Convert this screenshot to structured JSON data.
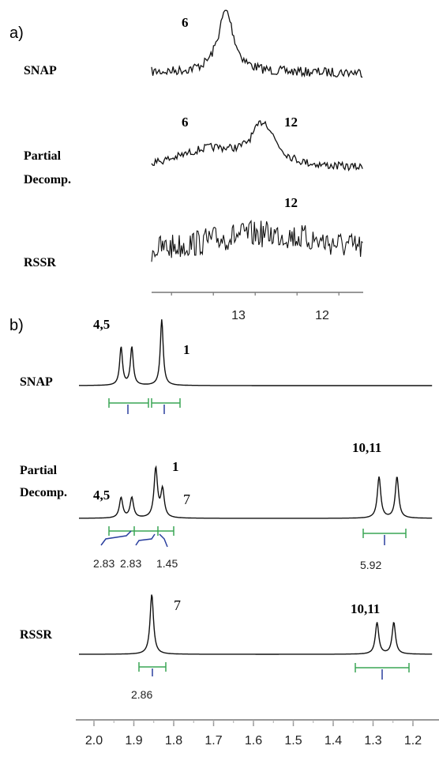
{
  "chart_data": [
    {
      "type": "line",
      "panel": "a)",
      "x_ticks": [
        13,
        12
      ],
      "series": [
        {
          "name": "SNAP",
          "peak_labels": [
            "6"
          ],
          "peaks_ppm": [
            13.15
          ]
        },
        {
          "name": "Partial Decomp.",
          "peak_labels": [
            "6",
            "12"
          ],
          "peaks_ppm": [
            13.2,
            12.7
          ]
        },
        {
          "name": "RSSR",
          "peak_labels": [
            "12"
          ],
          "peaks_ppm": [
            12.7
          ]
        }
      ]
    },
    {
      "type": "line",
      "panel": "b)",
      "x_ticks": [
        2.0,
        1.9,
        1.8,
        1.7,
        1.6,
        1.5,
        1.4,
        1.3,
        1.2
      ],
      "xlim": [
        2.03,
        1.19
      ],
      "series": [
        {
          "name": "SNAP",
          "peak_labels": [
            "4,5",
            "1"
          ],
          "peaks": [
            {
              "ppm": 1.932,
              "height": 0.55
            },
            {
              "ppm": 1.905,
              "height": 0.55
            },
            {
              "ppm": 1.83,
              "height": 0.95
            }
          ],
          "integrals": []
        },
        {
          "name": "Partial Decomp.",
          "peak_labels": [
            "4,5",
            "1",
            "7",
            "10,11"
          ],
          "peaks": [
            {
              "ppm": 1.932,
              "height": 0.33
            },
            {
              "ppm": 1.905,
              "height": 0.33
            },
            {
              "ppm": 1.845,
              "height": 0.8
            },
            {
              "ppm": 1.828,
              "height": 0.45
            },
            {
              "ppm": 1.285,
              "height": 0.67
            },
            {
              "ppm": 1.24,
              "height": 0.67
            }
          ],
          "integrals": [
            "2.83",
            "2.83",
            "1.45",
            "5.92"
          ]
        },
        {
          "name": "RSSR",
          "peak_labels": [
            "7",
            "10,11"
          ],
          "peaks": [
            {
              "ppm": 1.855,
              "height": 0.95
            },
            {
              "ppm": 1.29,
              "height": 0.5
            },
            {
              "ppm": 1.248,
              "height": 0.5
            }
          ],
          "integrals": [
            "2.86"
          ]
        }
      ]
    }
  ],
  "labels": {
    "panel_a": "a)",
    "panel_b": "b)",
    "a_snap": "SNAP",
    "a_partial_1": "Partial",
    "a_partial_2": "Decomp.",
    "a_rssr": "RSSR",
    "a_snap_peak": "6",
    "a_partial_peak6": "6",
    "a_partial_peak12": "12",
    "a_rssr_peak": "12",
    "a_tick_13": "13",
    "a_tick_12": "12",
    "b_snap": "SNAP",
    "b_partial_1": "Partial",
    "b_partial_2": "Decomp.",
    "b_rssr": "RSSR",
    "b_snap_45": "4,5",
    "b_snap_1": "1",
    "b_partial_45": "4,5",
    "b_partial_1peak": "1",
    "b_partial_7": "7",
    "b_partial_1011": "10,11",
    "b_rssr_7": "7",
    "b_rssr_1011": "10,11",
    "int_283a": "2.83",
    "int_283b": "2.83",
    "int_145": "1.45",
    "int_592": "5.92",
    "int_286": "2.86"
  }
}
